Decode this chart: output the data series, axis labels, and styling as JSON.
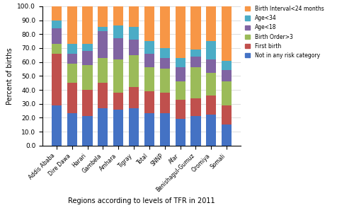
{
  "categories": [
    "Addis Ababa",
    "Dire Dawa",
    "Harari",
    "Gambela",
    "Amhara",
    "Tigray",
    "Total",
    "SNNP",
    "Afar",
    "Benishagul-Gumuz",
    "Oromiya",
    "Somali"
  ],
  "not_in_risk": [
    29,
    23,
    21,
    27,
    26,
    27,
    23,
    23,
    19,
    21,
    22,
    15
  ],
  "first_birth": [
    37,
    22,
    19,
    18,
    12,
    15,
    16,
    15,
    14,
    13,
    14,
    14
  ],
  "birth_order3": [
    7,
    14,
    18,
    18,
    24,
    23,
    17,
    17,
    13,
    22,
    16,
    17
  ],
  "age_lt18": [
    11,
    7,
    10,
    19,
    15,
    11,
    10,
    8,
    10,
    8,
    10,
    8
  ],
  "age_lt34": [
    6,
    7,
    5,
    3,
    9,
    9,
    9,
    7,
    7,
    5,
    13,
    7
  ],
  "birth_int": [
    10,
    27,
    27,
    15,
    14,
    15,
    25,
    30,
    37,
    31,
    25,
    39
  ],
  "colors": {
    "not_in_risk": "#4472C4",
    "first_birth": "#C0504D",
    "birth_order3": "#9BBB59",
    "age_lt18": "#8064A2",
    "age_lt34": "#4BACC6",
    "birth_int": "#F79646"
  },
  "ylabel": "Percent of births",
  "xlabel": "Regions according to levels of TFR in 2011",
  "ylim": [
    0,
    100
  ],
  "yticks": [
    0.0,
    10.0,
    20.0,
    30.0,
    40.0,
    50.0,
    60.0,
    70.0,
    80.0,
    90.0,
    100.0
  ]
}
